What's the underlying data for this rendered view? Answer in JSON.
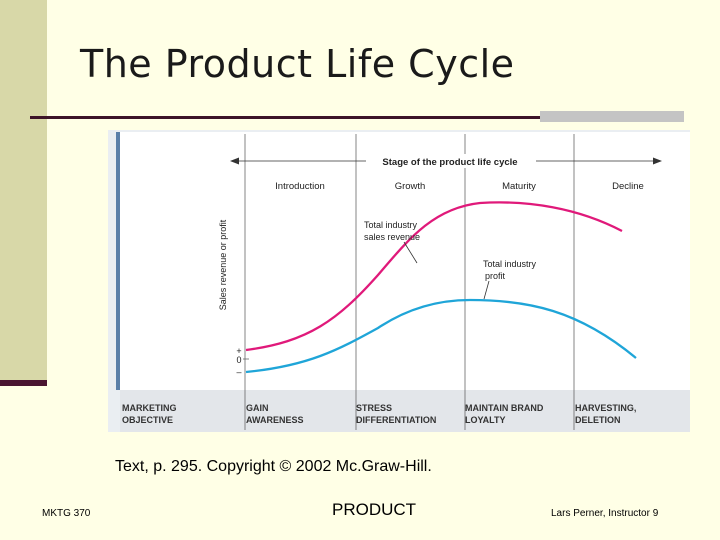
{
  "slide": {
    "title": "The Product Life Cycle",
    "caption": "Text, p. 295.  Copyright © 2002 Mc.Graw-Hill.",
    "footer_left": "MKTG 370",
    "footer_center": "PRODUCT",
    "footer_right": "Lars Perner, Instructor  9"
  },
  "diagram": {
    "header": "Stage of the product life cycle",
    "stages": [
      "Introduction",
      "Growth",
      "Maturity",
      "Decline"
    ],
    "y_axis_label": "Sales revenue or profit",
    "y_ticks": [
      "+",
      "0",
      "–"
    ],
    "curves": [
      {
        "label_lines": [
          "Total industry",
          "sales revenue"
        ],
        "color": "#e0197a"
      },
      {
        "label_lines": [
          "Total industry",
          "profit"
        ],
        "color": "#1fa5d8"
      }
    ],
    "row_label_lines": [
      "MARKETING",
      "OBJECTIVE"
    ],
    "objectives": [
      [
        "GAIN",
        "AWARENESS"
      ],
      [
        "STRESS",
        "DIFFERENTIATION"
      ],
      [
        "MAINTAIN BRAND",
        "LOYALTY"
      ],
      [
        "HARVESTING,",
        "DELETION"
      ]
    ]
  },
  "colors": {
    "background": "#ffffe6",
    "sidebar": "#d8d8a8",
    "rule": "#3d1428",
    "figure_bg": "#eaeef2",
    "panel_bg": "#ffffff",
    "sales_curve": "#e0197a",
    "profit_curve": "#1fa5d8"
  }
}
